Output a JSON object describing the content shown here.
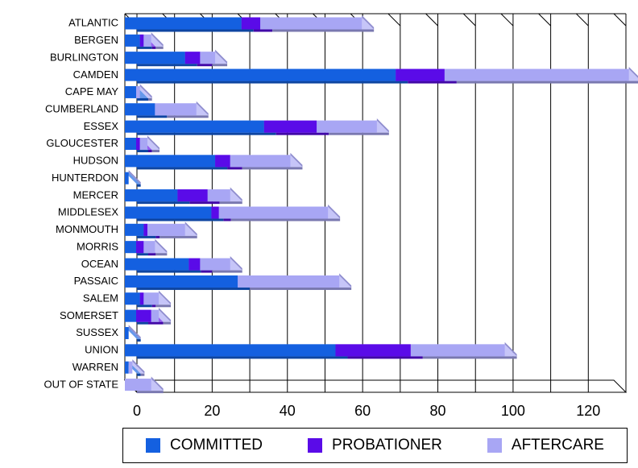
{
  "colors": {
    "committed": "#1460E0",
    "probationer": "#5A0BE8",
    "aftercare": "#A8A6F4"
  },
  "chart_data": {
    "type": "bar",
    "orientation": "horizontal",
    "stacked": true,
    "title": "",
    "xlabel": "",
    "ylabel": "",
    "xlim": [
      0,
      130
    ],
    "x_ticks": [
      "0",
      "20",
      "40",
      "60",
      "80",
      "100",
      "120"
    ],
    "grid": true,
    "legend_position": "bottom",
    "categories": [
      "ATLANTIC",
      "BERGEN",
      "BURLINGTON",
      "CAMDEN",
      "CAPE MAY",
      "CUMBERLAND",
      "ESSEX",
      "GLOUCESTER",
      "HUDSON",
      "HUNTERDON",
      "MERCER",
      "MIDDLESEX",
      "MONMOUTH",
      "MORRIS",
      "OCEAN",
      "PASSAIC",
      "SALEM",
      "SOMERSET",
      "SUSSEX",
      "UNION",
      "WARREN",
      "OUT OF STATE"
    ],
    "series": [
      {
        "name": "COMMITTED",
        "values": [
          31,
          4,
          16,
          72,
          3,
          8,
          37,
          3,
          24,
          1,
          14,
          23,
          5,
          3,
          17,
          30,
          4,
          3,
          1,
          56,
          1,
          0
        ]
      },
      {
        "name": "PROBATIONER",
        "values": [
          5,
          1,
          4,
          13,
          0,
          0,
          14,
          1,
          4,
          0,
          8,
          2,
          1,
          2,
          3,
          0,
          1,
          4,
          0,
          20,
          0,
          0
        ]
      },
      {
        "name": "AFTERCARE",
        "values": [
          27,
          2,
          4,
          49,
          1,
          11,
          16,
          2,
          16,
          0,
          6,
          29,
          10,
          3,
          8,
          27,
          4,
          2,
          0,
          25,
          1,
          7
        ]
      }
    ]
  }
}
